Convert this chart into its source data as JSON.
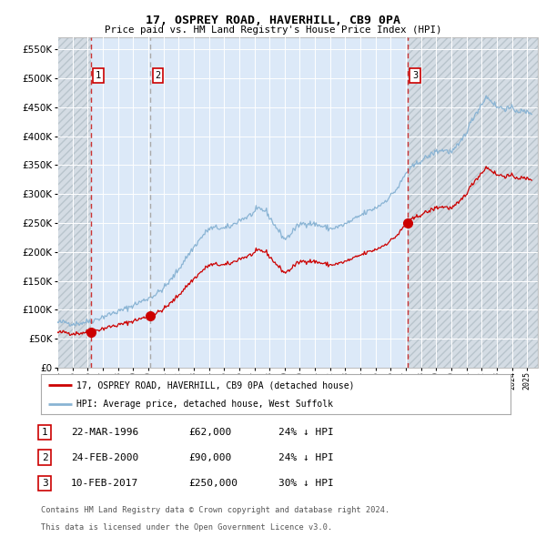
{
  "title": "17, OSPREY ROAD, HAVERHILL, CB9 0PA",
  "subtitle": "Price paid vs. HM Land Registry's House Price Index (HPI)",
  "legend_red": "17, OSPREY ROAD, HAVERHILL, CB9 0PA (detached house)",
  "legend_blue": "HPI: Average price, detached house, West Suffolk",
  "transactions": [
    {
      "num": 1,
      "date": "22-MAR-1996",
      "price": 62000,
      "pct": "24%",
      "dir": "↓",
      "year": 1996.22
    },
    {
      "num": 2,
      "date": "24-FEB-2000",
      "price": 90000,
      "pct": "24%",
      "dir": "↓",
      "year": 2000.14
    },
    {
      "num": 3,
      "date": "10-FEB-2017",
      "price": 250000,
      "pct": "30%",
      "dir": "↓",
      "year": 2017.11
    }
  ],
  "footnote1": "Contains HM Land Registry data © Crown copyright and database right 2024.",
  "footnote2": "This data is licensed under the Open Government Licence v3.0.",
  "ylim": [
    0,
    570000
  ],
  "yticks": [
    0,
    50000,
    100000,
    150000,
    200000,
    250000,
    300000,
    350000,
    400000,
    450000,
    500000,
    550000
  ],
  "xlim_start": 1994.0,
  "xlim_end": 2025.7,
  "fig_bg": "#ffffff",
  "plot_bg": "#dce9f8",
  "hatch_bg": "#d0d8e0",
  "grid_color": "#ffffff",
  "red_color": "#cc0000",
  "blue_color": "#8ab4d4",
  "vline_red_color": "#cc3333",
  "vline_gray_color": "#aaaaaa",
  "number_box_edge": "#cc0000",
  "trans_marker_size": 7
}
